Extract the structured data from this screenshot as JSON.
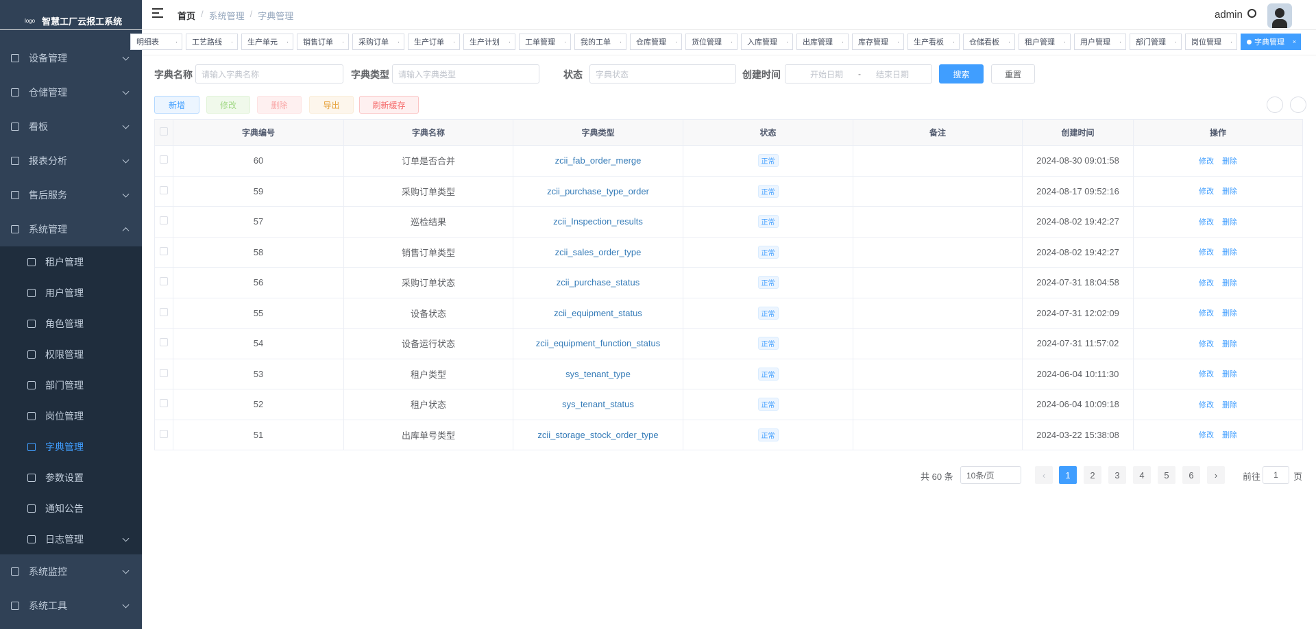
{
  "sidebar": {
    "logo": "logo",
    "title": "智慧工厂云报工系统",
    "menu": [
      {
        "label": "设备管理"
      },
      {
        "label": "仓储管理"
      },
      {
        "label": "看板"
      },
      {
        "label": "报表分析"
      },
      {
        "label": "售后服务"
      },
      {
        "label": "系统管理",
        "expanded": true,
        "children": [
          {
            "label": "租户管理"
          },
          {
            "label": "用户管理"
          },
          {
            "label": "角色管理"
          },
          {
            "label": "权限管理"
          },
          {
            "label": "部门管理"
          },
          {
            "label": "岗位管理"
          },
          {
            "label": "字典管理",
            "active": true
          },
          {
            "label": "参数设置"
          },
          {
            "label": "通知公告"
          },
          {
            "label": "日志管理",
            "expandable": true
          }
        ]
      },
      {
        "label": "系统监控"
      },
      {
        "label": "系统工具"
      }
    ]
  },
  "header": {
    "breadcrumb": [
      "首页",
      "系统管理",
      "字典管理"
    ],
    "user": "admin"
  },
  "tags": [
    {
      "label": "明细表"
    },
    {
      "label": "工艺路线"
    },
    {
      "label": "生产单元"
    },
    {
      "label": "销售订单"
    },
    {
      "label": "采购订单"
    },
    {
      "label": "生产订单"
    },
    {
      "label": "生产计划"
    },
    {
      "label": "工单管理"
    },
    {
      "label": "我的工单"
    },
    {
      "label": "仓库管理"
    },
    {
      "label": "货位管理"
    },
    {
      "label": "入库管理"
    },
    {
      "label": "出库管理"
    },
    {
      "label": "库存管理"
    },
    {
      "label": "生产看板"
    },
    {
      "label": "仓储看板"
    },
    {
      "label": "租户管理"
    },
    {
      "label": "用户管理"
    },
    {
      "label": "部门管理"
    },
    {
      "label": "岗位管理"
    },
    {
      "label": "字典管理",
      "active": true
    }
  ],
  "search": {
    "fields": [
      {
        "label": "字典名称",
        "placeholder": "请输入字典名称"
      },
      {
        "label": "字典类型",
        "placeholder": "请输入字典类型"
      },
      {
        "label": "状态",
        "placeholder": "字典状态"
      }
    ],
    "date": {
      "label": "创建时间",
      "start": "开始日期",
      "separator": "-",
      "end": "结束日期"
    },
    "buttons": [
      "搜索",
      "重置"
    ]
  },
  "toolbar": [
    "新增",
    "修改",
    "删除",
    "导出",
    "刷新缓存"
  ],
  "table": {
    "columns": [
      "字典编号",
      "字典名称",
      "字典类型",
      "状态",
      "备注",
      "创建时间",
      "操作"
    ],
    "rows": [
      {
        "id": 60,
        "name": "订单是否合并",
        "type": "zcii_fab_order_merge",
        "status": "正常",
        "created": "2024-08-30 09:01:58"
      },
      {
        "id": 59,
        "name": "采购订单类型",
        "type": "zcii_purchase_type_order",
        "status": "正常",
        "created": "2024-08-17 09:52:16"
      },
      {
        "id": 57,
        "name": "巡检结果",
        "type": "zcii_Inspection_results",
        "status": "正常",
        "created": "2024-08-02 19:42:27"
      },
      {
        "id": 58,
        "name": "销售订单类型",
        "type": "zcii_sales_order_type",
        "status": "正常",
        "created": "2024-08-02 19:42:27"
      },
      {
        "id": 56,
        "name": "采购订单状态",
        "type": "zcii_purchase_status",
        "status": "正常",
        "created": "2024-07-31 18:04:58"
      },
      {
        "id": 55,
        "name": "设备状态",
        "type": "zcii_equipment_status",
        "status": "正常",
        "created": "2024-07-31 12:02:09"
      },
      {
        "id": 54,
        "name": "设备运行状态",
        "type": "zcii_equipment_function_status",
        "status": "正常",
        "created": "2024-07-31 11:57:02"
      },
      {
        "id": 53,
        "name": "租户类型",
        "type": "sys_tenant_type",
        "status": "正常",
        "created": "2024-06-04 10:11:30"
      },
      {
        "id": 52,
        "name": "租户状态",
        "type": "sys_tenant_status",
        "status": "正常",
        "created": "2024-06-04 10:09:18"
      },
      {
        "id": 51,
        "name": "出库单号类型",
        "type": "zcii_storage_stock_order_type",
        "status": "正常",
        "created": "2024-03-22 15:38:08"
      }
    ],
    "actions": [
      "修改",
      "删除"
    ]
  },
  "pagination": {
    "total": "共 60 条",
    "page_size": "10条/页",
    "pages": [
      1,
      2,
      3,
      4,
      5,
      6
    ],
    "current": 1,
    "goto": "前往",
    "goto_value": 1,
    "goto_suffix": "页"
  }
}
